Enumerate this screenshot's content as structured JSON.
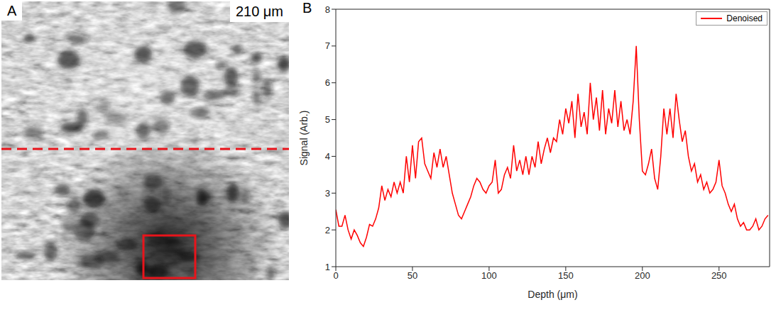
{
  "image_panel": {
    "letter": "A",
    "label": "210 μm"
  },
  "chart_data": {
    "type": "line",
    "letter": "B",
    "x_label": "Depth (μm)",
    "y_label": "Signal (Arb.)",
    "xlim": [
      0,
      283
    ],
    "xticks": [
      0,
      50,
      100,
      150,
      200,
      250
    ],
    "ylim": [
      1,
      8
    ],
    "yticks": [
      1,
      2,
      3,
      4,
      5,
      6,
      7,
      8
    ],
    "grid": false,
    "legend": "upper right",
    "x": [
      0,
      2,
      4,
      6,
      8,
      10,
      12,
      14,
      16,
      18,
      20,
      22,
      24,
      26,
      28,
      30,
      32,
      34,
      36,
      38,
      40,
      42,
      44,
      46,
      48,
      50,
      52,
      54,
      56,
      58,
      60,
      62,
      64,
      66,
      68,
      70,
      72,
      74,
      76,
      78,
      80,
      82,
      84,
      86,
      88,
      90,
      92,
      94,
      96,
      98,
      100,
      102,
      104,
      106,
      108,
      110,
      112,
      114,
      116,
      118,
      120,
      122,
      124,
      126,
      128,
      130,
      132,
      134,
      136,
      138,
      140,
      142,
      144,
      146,
      148,
      150,
      152,
      154,
      156,
      158,
      160,
      162,
      164,
      166,
      168,
      170,
      172,
      174,
      176,
      178,
      180,
      182,
      184,
      186,
      188,
      190,
      192,
      194,
      196,
      198,
      200,
      202,
      204,
      206,
      208,
      210,
      212,
      214,
      216,
      218,
      220,
      222,
      224,
      226,
      228,
      230,
      232,
      234,
      236,
      238,
      240,
      242,
      244,
      246,
      248,
      250,
      252,
      254,
      256,
      258,
      260,
      262,
      264,
      266,
      268,
      270,
      272,
      274,
      276,
      278,
      280,
      282
    ],
    "series": [
      {
        "name": "Denoised",
        "color": "#ff0000",
        "values": [
          2.55,
          2.1,
          2.1,
          2.4,
          2.0,
          1.75,
          2.0,
          1.85,
          1.65,
          1.55,
          1.8,
          2.15,
          2.1,
          2.3,
          2.6,
          3.2,
          2.8,
          3.1,
          2.9,
          3.3,
          3.0,
          3.3,
          3.0,
          4.0,
          3.3,
          4.3,
          3.4,
          4.4,
          4.5,
          3.8,
          3.6,
          3.4,
          4.1,
          3.7,
          4.2,
          3.7,
          4.0,
          3.5,
          3.0,
          2.7,
          2.4,
          2.3,
          2.5,
          2.7,
          2.9,
          3.2,
          3.4,
          3.3,
          3.1,
          3.0,
          3.2,
          3.3,
          3.9,
          3.0,
          3.1,
          3.5,
          3.7,
          3.4,
          4.3,
          3.6,
          3.9,
          3.5,
          4.0,
          3.5,
          4.0,
          3.7,
          4.4,
          3.8,
          4.2,
          4.5,
          4.1,
          4.5,
          4.4,
          5.0,
          4.6,
          5.3,
          4.9,
          5.5,
          4.5,
          5.7,
          4.8,
          5.2,
          4.6,
          6.0,
          5.0,
          5.6,
          4.7,
          5.8,
          4.6,
          5.3,
          4.9,
          5.8,
          4.8,
          5.5,
          4.7,
          5.0,
          4.6,
          5.5,
          7.0,
          5.0,
          3.6,
          3.5,
          3.8,
          4.2,
          3.4,
          3.1,
          4.0,
          5.3,
          4.6,
          5.3,
          4.5,
          5.7,
          5.0,
          4.4,
          4.7,
          4.0,
          3.6,
          3.8,
          3.3,
          3.5,
          3.1,
          3.3,
          3.0,
          3.1,
          3.3,
          3.9,
          3.2,
          3.0,
          2.7,
          2.5,
          2.7,
          2.3,
          2.1,
          2.2,
          2.0,
          2.0,
          2.1,
          2.3,
          2.0,
          2.1,
          2.3,
          2.4
        ]
      }
    ]
  }
}
